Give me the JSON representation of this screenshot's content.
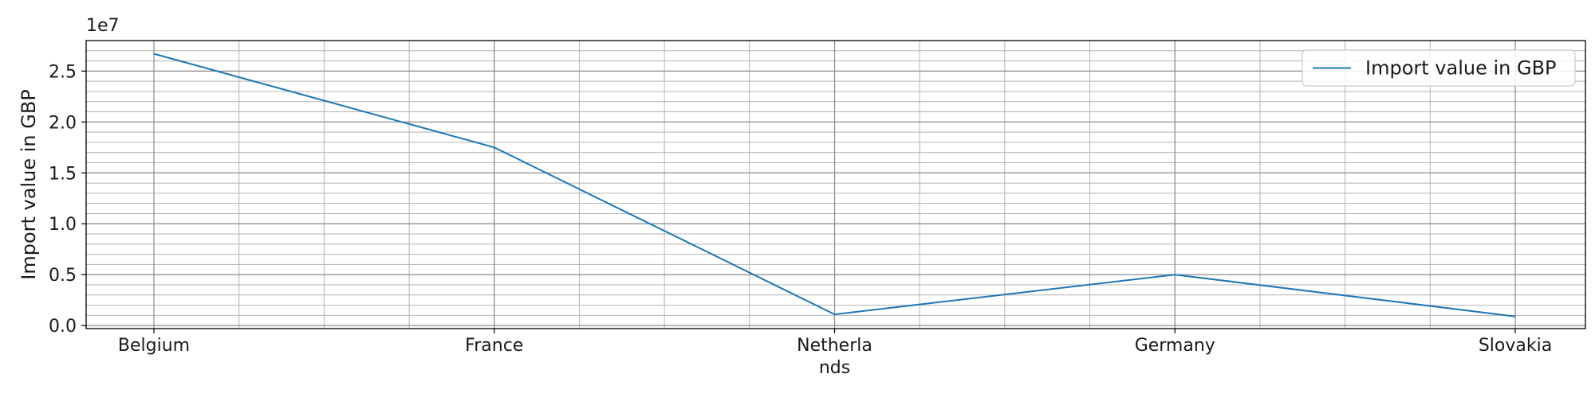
{
  "chart_data": {
    "type": "line",
    "categories": [
      "Belgium",
      "France",
      "Netherlands",
      "Germany",
      "Slovakia"
    ],
    "category_labels": [
      [
        "Belgium"
      ],
      [
        "France"
      ],
      [
        "Netherla",
        "nds"
      ],
      [
        "Germany"
      ],
      [
        "Slovakia"
      ]
    ],
    "series": [
      {
        "name": "Import value in GBP",
        "values": [
          26700000,
          17500000,
          1100000,
          5000000,
          900000
        ],
        "color": "#1f77b4"
      }
    ],
    "xlabel": "",
    "ylabel": "Import value in GBP",
    "ylim": [
      -300000,
      28000000
    ],
    "yticks": [
      0,
      5000000,
      10000000,
      15000000,
      20000000,
      25000000
    ],
    "ytick_labels": [
      "0.0",
      "0.5",
      "1.0",
      "1.5",
      "2.0",
      "2.5"
    ],
    "y_offset_label": "1e7",
    "grid": true,
    "minor_grid": true,
    "legend_position": "top-right"
  }
}
